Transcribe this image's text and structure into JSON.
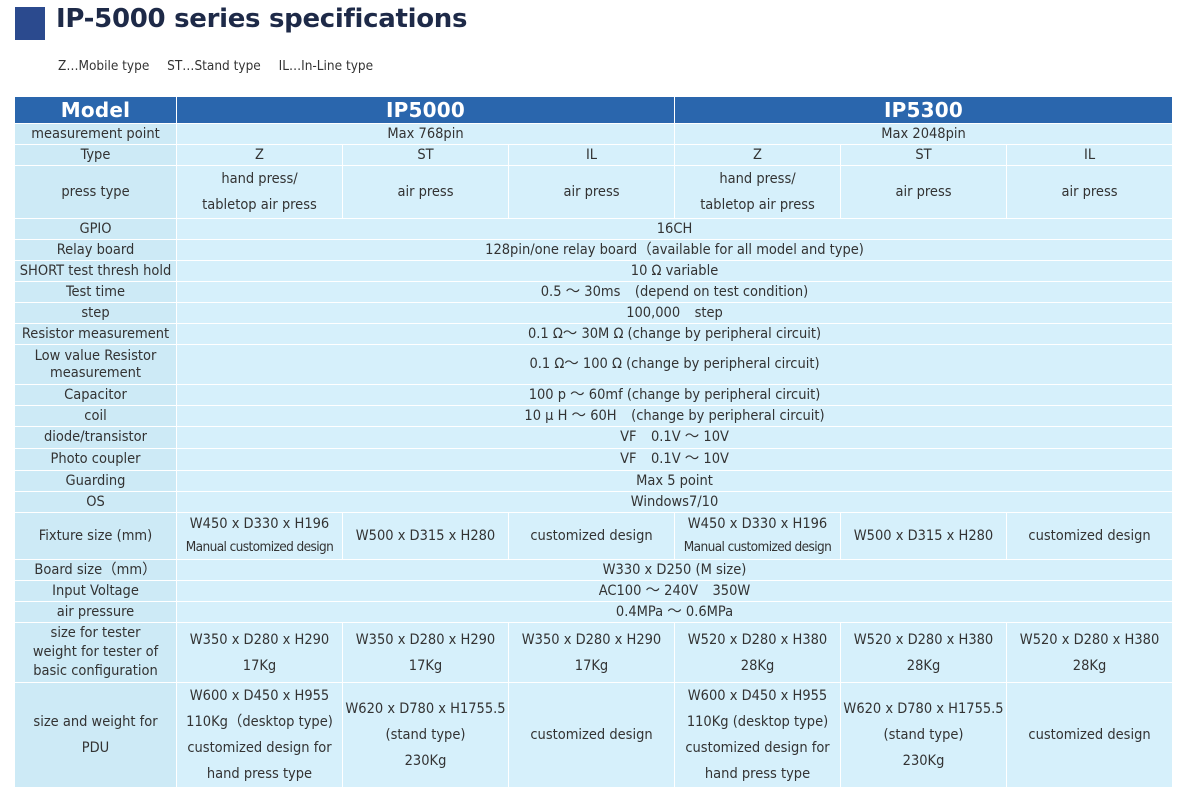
{
  "title": "IP-5000 series specifications",
  "legend": [
    "Z…Mobile type",
    "ST…Stand type",
    "IL…In-Line type"
  ],
  "header": {
    "model": "Model",
    "ip5000": "IP5000",
    "ip5300": "IP5300"
  },
  "rows": {
    "mpoint": {
      "label": "measurement point",
      "ip5000": "Max 768pin",
      "ip5300": "Max 2048pin"
    },
    "type": {
      "label": "Type",
      "values": [
        "Z",
        "ST",
        "IL",
        "Z",
        "ST",
        "IL"
      ]
    },
    "press": {
      "label": "press type",
      "z_line1": "hand press/",
      "z_line2": "tabletop air press",
      "air": "air press"
    },
    "gpio": {
      "label": "GPIO",
      "value": "16CH"
    },
    "relay": {
      "label": "Relay board",
      "value": "128pin/one relay board（available for all model and type)"
    },
    "short": {
      "label": "SHORT test thresh hold",
      "value": "10 Ω variable"
    },
    "ttime": {
      "label": "Test time",
      "value": "0.5 ～ 30ms　(depend on test condition)"
    },
    "step": {
      "label": "step",
      "value": "100,000　step"
    },
    "resistor": {
      "label": "Resistor measurement",
      "value": "0.1 Ω～ 30M Ω (change by peripheral circuit)"
    },
    "lowres": {
      "label_line1": "Low value Resistor",
      "label_line2": "measurement",
      "value": "0.1 Ω～ 100 Ω (change by peripheral circuit)"
    },
    "cap": {
      "label": "Capacitor",
      "value": "100 p ～ 60mf (change by peripheral circuit)"
    },
    "coil": {
      "label": "coil",
      "value": "10 μ H ～ 60H　(change by peripheral circuit)"
    },
    "diode": {
      "label": "diode/transistor",
      "value": "VF　0.1V ～ 10V"
    },
    "photo": {
      "label": "Photo coupler",
      "value": "VF　0.1V ～ 10V"
    },
    "guard": {
      "label": "Guarding",
      "value": "Max 5 point"
    },
    "os": {
      "label": "OS",
      "value": "Windows7/10"
    },
    "fixture": {
      "label": "Fixture size (mm)",
      "z_line1": "W450 x D330 x H196",
      "z_line2": "Manual customized design",
      "st": "W500 x D315 x H280",
      "il": "customized design"
    },
    "board": {
      "label": "Board size（mm）",
      "value": "W330 x D250 (M size)"
    },
    "voltage": {
      "label": "Input Voltage",
      "value": "AC100 ～ 240V　350W"
    },
    "air": {
      "label": "air pressure",
      "value": "0.4MPa ～ 0.6MPa"
    },
    "tester": {
      "label_line1": "size for tester",
      "label_line2": "weight for tester of",
      "label_line3": "basic configuration",
      "ip5000_size": "W350 x D280 x H290",
      "ip5000_weight": "17Kg",
      "ip5300_size": "W520 x D280 x H380",
      "ip5300_weight": "28Kg"
    },
    "pdu": {
      "label_line1": "size and weight for",
      "label_line2": "PDU",
      "z_line1": "W600 x D450 x H955",
      "z5000_line2": "110Kg（desktop type)",
      "z5300_line2": "110Kg (desktop type)",
      "z_line3": "customized design for",
      "z_line4": "hand press type",
      "st_line1": "W620 x D780 x H1755.5",
      "st_line2": "(stand type)",
      "st_line3": "230Kg",
      "il": "customized design"
    }
  }
}
